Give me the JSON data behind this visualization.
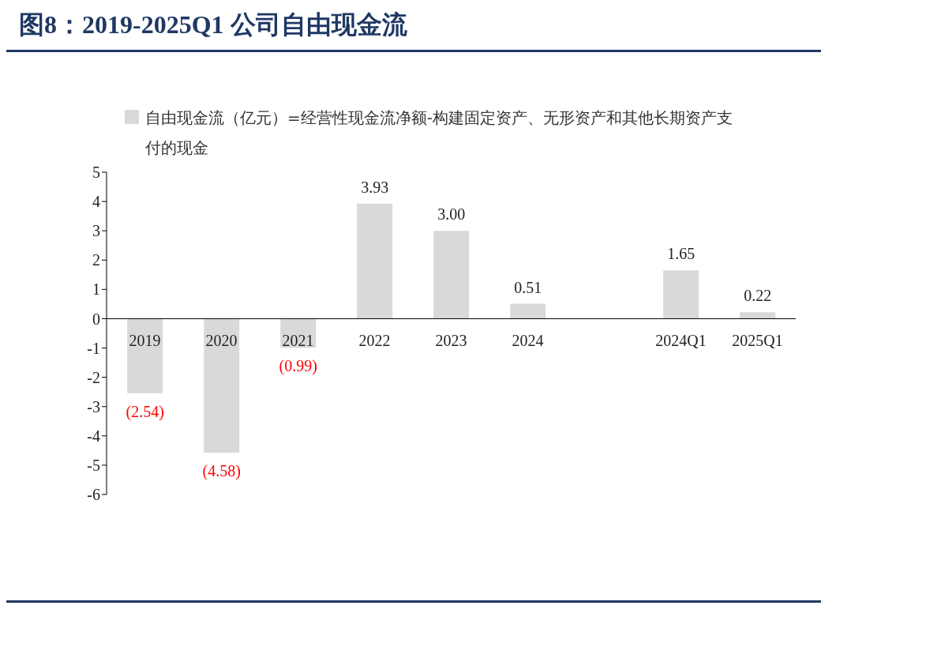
{
  "chart_data": {
    "type": "bar",
    "title": "图8：2019-2025Q1 公司自由现金流",
    "categories": [
      "2019",
      "2020",
      "2021",
      "2022",
      "2023",
      "2024",
      null,
      "2024Q1",
      "2025Q1"
    ],
    "series": [
      {
        "name": "自由现金流（亿元）=经营性现金流净额-构建固定资产、无形资产和其他长期资产支付的现金",
        "color": "#d9d9d9",
        "values": [
          -2.54,
          -4.58,
          -0.99,
          3.93,
          3.0,
          0.51,
          null,
          1.65,
          0.22
        ],
        "value_labels": [
          "(2.54)",
          "(4.58)",
          "(0.99)",
          "3.93",
          "3.00",
          "0.51",
          null,
          "1.65",
          "0.22"
        ]
      }
    ],
    "ylim": [
      -6,
      5
    ],
    "yticks": [
      -6,
      -5,
      -4,
      -3,
      -2,
      -1,
      0,
      1,
      2,
      3,
      4,
      5
    ],
    "grid": false,
    "legend": "top left"
  }
}
